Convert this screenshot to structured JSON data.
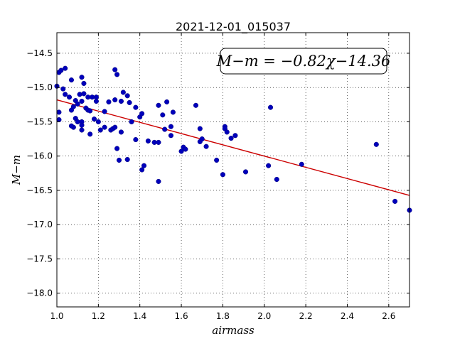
{
  "chart_data": {
    "type": "scatter",
    "title": "2021-12-01_015037",
    "xlabel": "airmass",
    "ylabel": "M−m",
    "xlim": [
      1.0,
      2.7
    ],
    "ylim": [
      -18.2,
      -14.2
    ],
    "y_inverted": false,
    "grid": true,
    "x_ticks": [
      1.0,
      1.2,
      1.4,
      1.6,
      1.8,
      2.0,
      2.2,
      2.4,
      2.6
    ],
    "x_tick_labels": [
      "1.0",
      "1.2",
      "1.4",
      "1.6",
      "1.8",
      "2.0",
      "2.2",
      "2.4",
      "2.6"
    ],
    "y_ticks": [
      -14.5,
      -15.0,
      -15.5,
      -16.0,
      -16.5,
      -17.0,
      -17.5,
      -18.0
    ],
    "y_tick_labels": [
      "−14.5",
      "−15.0",
      "−15.5",
      "−16.0",
      "−16.5",
      "−17.0",
      "−17.5",
      "−18.0"
    ],
    "annotation": "M−m = −0.82χ−14.36",
    "fit_line": {
      "slope": -0.82,
      "intercept": -14.36,
      "color": "#cc0000"
    },
    "marker_color": "#0000bb",
    "series": [
      {
        "values": [
          [
            1.0,
            -14.98
          ],
          [
            1.01,
            -14.78
          ],
          [
            1.02,
            -14.75
          ],
          [
            1.04,
            -14.72
          ],
          [
            1.03,
            -15.02
          ],
          [
            1.04,
            -15.1
          ],
          [
            1.06,
            -15.14
          ],
          [
            1.07,
            -14.89
          ],
          [
            1.01,
            -15.36
          ],
          [
            1.01,
            -15.47
          ],
          [
            1.07,
            -15.33
          ],
          [
            1.08,
            -15.28
          ],
          [
            1.09,
            -15.19
          ],
          [
            1.1,
            -15.24
          ],
          [
            1.08,
            -15.58
          ],
          [
            1.07,
            -15.56
          ],
          [
            1.09,
            -15.45
          ],
          [
            1.1,
            -15.5
          ],
          [
            1.12,
            -15.5
          ],
          [
            1.12,
            -15.55
          ],
          [
            1.12,
            -15.62
          ],
          [
            1.12,
            -15.2
          ],
          [
            1.11,
            -15.1
          ],
          [
            1.13,
            -15.09
          ],
          [
            1.12,
            -14.85
          ],
          [
            1.13,
            -14.94
          ],
          [
            1.14,
            -15.3
          ],
          [
            1.15,
            -15.33
          ],
          [
            1.15,
            -15.14
          ],
          [
            1.16,
            -15.34
          ],
          [
            1.17,
            -15.14
          ],
          [
            1.19,
            -15.14
          ],
          [
            1.18,
            -15.46
          ],
          [
            1.19,
            -15.2
          ],
          [
            1.2,
            -15.5
          ],
          [
            1.16,
            -15.68
          ],
          [
            1.21,
            -15.62
          ],
          [
            1.23,
            -15.35
          ],
          [
            1.23,
            -15.58
          ],
          [
            1.25,
            -15.21
          ],
          [
            1.26,
            -15.62
          ],
          [
            1.27,
            -15.6
          ],
          [
            1.28,
            -15.18
          ],
          [
            1.28,
            -15.58
          ],
          [
            1.28,
            -14.74
          ],
          [
            1.29,
            -14.81
          ],
          [
            1.31,
            -15.2
          ],
          [
            1.32,
            -15.07
          ],
          [
            1.34,
            -15.12
          ],
          [
            1.35,
            -15.22
          ],
          [
            1.31,
            -15.65
          ],
          [
            1.29,
            -15.89
          ],
          [
            1.3,
            -16.06
          ],
          [
            1.34,
            -16.05
          ],
          [
            1.36,
            -15.5
          ],
          [
            1.38,
            -15.29
          ],
          [
            1.38,
            -15.76
          ],
          [
            1.4,
            -15.43
          ],
          [
            1.41,
            -15.38
          ],
          [
            1.41,
            -16.2
          ],
          [
            1.42,
            -16.14
          ],
          [
            1.44,
            -15.78
          ],
          [
            1.47,
            -15.8
          ],
          [
            1.49,
            -15.8
          ],
          [
            1.49,
            -15.26
          ],
          [
            1.51,
            -15.4
          ],
          [
            1.52,
            -15.61
          ],
          [
            1.53,
            -15.21
          ],
          [
            1.55,
            -15.57
          ],
          [
            1.55,
            -15.7
          ],
          [
            1.56,
            -15.36
          ],
          [
            1.49,
            -16.37
          ],
          [
            1.6,
            -15.93
          ],
          [
            1.61,
            -15.87
          ],
          [
            1.62,
            -15.9
          ],
          [
            1.67,
            -15.26
          ],
          [
            1.69,
            -15.6
          ],
          [
            1.69,
            -15.79
          ],
          [
            1.7,
            -15.75
          ],
          [
            1.72,
            -15.86
          ],
          [
            1.77,
            -16.06
          ],
          [
            1.8,
            -16.27
          ],
          [
            1.81,
            -15.57
          ],
          [
            1.81,
            -15.6
          ],
          [
            1.82,
            -15.65
          ],
          [
            1.84,
            -15.74
          ],
          [
            1.86,
            -15.7
          ],
          [
            1.91,
            -16.23
          ],
          [
            2.02,
            -16.14
          ],
          [
            2.03,
            -15.29
          ],
          [
            2.06,
            -16.34
          ],
          [
            2.18,
            -16.12
          ],
          [
            2.54,
            -15.83
          ],
          [
            2.63,
            -16.66
          ],
          [
            2.7,
            -16.79
          ]
        ]
      }
    ]
  }
}
